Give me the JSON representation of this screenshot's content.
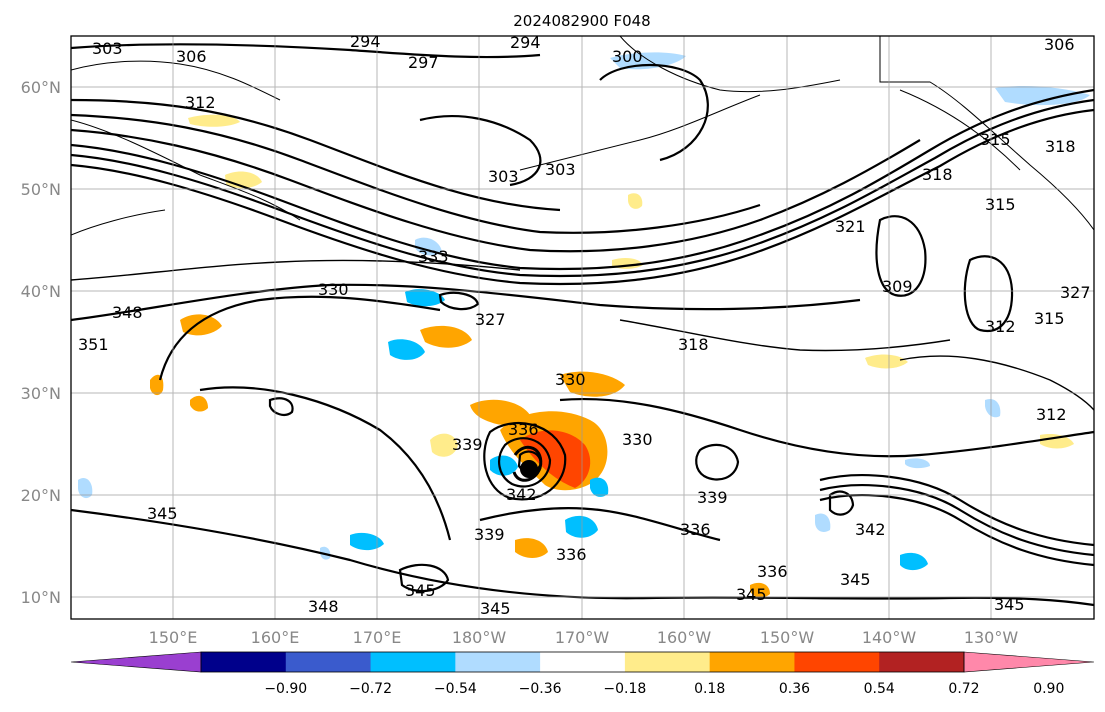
{
  "title": "2024082900 F048",
  "lat_ticks": [
    "60°N",
    "50°N",
    "40°N",
    "30°N",
    "20°N",
    "10°N"
  ],
  "lon_ticks": [
    "150°E",
    "160°E",
    "170°E",
    "180°W",
    "170°W",
    "160°W",
    "150°W",
    "140°W",
    "130°W"
  ],
  "colorbar": {
    "tick_labels": [
      "−0.90",
      "−0.72",
      "−0.54",
      "−0.36",
      "−0.18",
      "0.18",
      "0.36",
      "0.54",
      "0.72",
      "0.90"
    ],
    "colors": [
      "#9a3fd0",
      "#00008b",
      "#3a5bcd",
      "#00bfff",
      "#b0dcff",
      "#ffffff",
      "#ffec8b",
      "#ffa500",
      "#ff4500",
      "#b22222",
      "#ff88aa"
    ]
  },
  "contour_labels": [
    "303",
    "306",
    "294",
    "297",
    "294",
    "300",
    "306",
    "312",
    "303",
    "303",
    "318",
    "315",
    "318",
    "321",
    "315",
    "309",
    "327",
    "312",
    "315",
    "312",
    "330",
    "333",
    "327",
    "318",
    "330",
    "336",
    "339",
    "342",
    "330",
    "339",
    "339",
    "336",
    "336",
    "336",
    "345",
    "342",
    "345",
    "348",
    "351",
    "345",
    "348",
    "345",
    "345",
    "345"
  ],
  "cyclone_marker": "tropical-cyclone-center"
}
